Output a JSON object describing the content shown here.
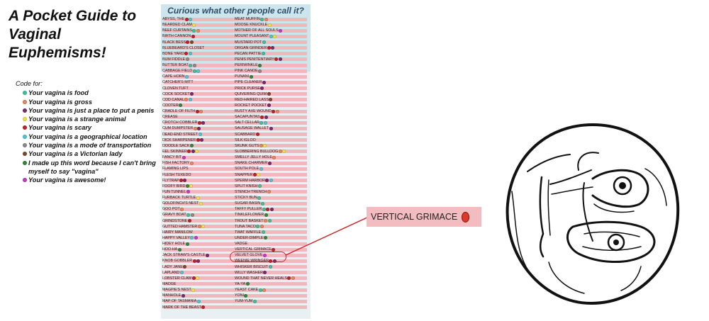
{
  "title_line1": "A Pocket Guide to",
  "title_line2": "Vaginal Euphemisms!",
  "legend": {
    "heading": "Code for:",
    "items": [
      {
        "color": "#3cc0a0",
        "text": "Your vagina is food"
      },
      {
        "color": "#e8865a",
        "text": "Your vagina is gross"
      },
      {
        "color": "#7a2a6e",
        "text": "Your vagina is just a place to put a penis"
      },
      {
        "color": "#f0e04a",
        "text": "Your vagina is a strange animal"
      },
      {
        "color": "#c0202a",
        "text": "Your vagina is scary"
      },
      {
        "color": "#4cc6d4",
        "text": "Your vagina is a geographical location"
      },
      {
        "color": "#8a8a8a",
        "text": "Your vagina is a mode of transportation"
      },
      {
        "color": "#7a4a2a",
        "text": "Your vagina is a Victorian lady"
      },
      {
        "color": "#2a8a3a",
        "text": "I made up this word because I can't bring myself to say \"vagina\""
      },
      {
        "color": "#c43ac8",
        "text": "Your vagina is awesome!"
      }
    ]
  },
  "guide_title": "Curious what other people call it?",
  "left_col": [
    {
      "t": "ABYSS, THE",
      "c": [
        "#c0202a",
        "#4cc6d4"
      ]
    },
    {
      "t": "BEARDED CLAM",
      "c": [
        "#f0e04a"
      ]
    },
    {
      "t": "BEEF CURTAINS",
      "c": [
        "#3cc0a0",
        "#e8865a"
      ]
    },
    {
      "t": "BIRTH CANNON",
      "c": [
        "#c0202a"
      ]
    },
    {
      "t": "BLACK BESS",
      "c": [
        "#c0202a",
        "#7a4a2a"
      ]
    },
    {
      "t": "BLUEBEARD'S CLOSET",
      "c": []
    },
    {
      "t": "BONE YARD",
      "c": [
        "#c0202a",
        "#4cc6d4"
      ]
    },
    {
      "t": "BUM FIDDLE",
      "c": [
        "#8a8a8a"
      ]
    },
    {
      "t": "BUTTER BOAT",
      "c": [
        "#3cc0a0",
        "#8a8a8a"
      ]
    },
    {
      "t": "CABBAGE FIELD",
      "c": [
        "#3cc0a0",
        "#4cc6d4"
      ]
    },
    {
      "t": "CAPE HORN",
      "c": [
        "#4cc6d4"
      ]
    },
    {
      "t": "CATCHER'S MITT",
      "c": []
    },
    {
      "t": "CLOVEN TUFT",
      "c": []
    },
    {
      "t": "COCK SOCKET",
      "c": [
        "#7a2a6e"
      ]
    },
    {
      "t": "COD CANAL",
      "c": [
        "#e8865a",
        "#4cc6d4"
      ]
    },
    {
      "t": "COOTER",
      "c": [
        "#2a8a3a"
      ]
    },
    {
      "t": "CRADLE OF FILTH",
      "c": [
        "#c0202a",
        "#e8865a"
      ]
    },
    {
      "t": "CREASE",
      "c": []
    },
    {
      "t": "CROTCH COBBLER",
      "c": [
        "#c0202a",
        "#7a2a6e"
      ]
    },
    {
      "t": "CUM DUMPSTER",
      "c": [
        "#e8865a",
        "#7a2a6e"
      ]
    },
    {
      "t": "DEAD-END STREET",
      "c": [
        "#4cc6d4"
      ]
    },
    {
      "t": "DICK SHARPENER",
      "c": [
        "#c0202a",
        "#7a2a6e"
      ]
    },
    {
      "t": "DOODLE SACK",
      "c": [
        "#2a8a3a"
      ]
    },
    {
      "t": "EEL SKINNER",
      "c": [
        "#c0202a",
        "#7a2a6e",
        "#f0e04a"
      ]
    },
    {
      "t": "FANCY BIT",
      "c": [
        "#c43ac8"
      ]
    },
    {
      "t": "FISH FACTORY",
      "c": [
        "#e8865a"
      ]
    },
    {
      "t": "FLAMING LIPS",
      "c": []
    },
    {
      "t": "FLESH TUXEDO",
      "c": []
    },
    {
      "t": "FLYTRAP",
      "c": [
        "#c0202a",
        "#7a2a6e"
      ]
    },
    {
      "t": "FOOFY BIRD",
      "c": [
        "#2a8a3a",
        "#f0e04a"
      ]
    },
    {
      "t": "FUN TUNNEL",
      "c": [
        "#c43ac8"
      ]
    },
    {
      "t": "FURBACK TURTLE",
      "c": [
        "#f0e04a"
      ]
    },
    {
      "t": "GOLDFINCH'S NEST",
      "c": [
        "#f0e04a"
      ]
    },
    {
      "t": "GOO POT",
      "c": [
        "#e8865a"
      ]
    },
    {
      "t": "GRAVY BOAT",
      "c": [
        "#3cc0a0",
        "#8a8a8a"
      ]
    },
    {
      "t": "GRINDSTONE",
      "c": [
        "#c0202a"
      ]
    },
    {
      "t": "GUTTED HAMSTER",
      "c": [
        "#e8865a",
        "#f0e04a"
      ]
    },
    {
      "t": "HAIRY MANILOW",
      "c": []
    },
    {
      "t": "HAPPY VALLEY",
      "c": [
        "#4cc6d4",
        "#c43ac8"
      ]
    },
    {
      "t": "HIDEY HOLE",
      "c": [
        "#2a8a3a"
      ]
    },
    {
      "t": "HOO-HA",
      "c": [
        "#2a8a3a"
      ]
    },
    {
      "t": "JACK STRAW'S CASTLE",
      "c": [
        "#7a2a6e"
      ]
    },
    {
      "t": "KNOB GOBBLER",
      "c": [
        "#c0202a",
        "#7a2a6e"
      ]
    },
    {
      "t": "LADY JANE",
      "c": [
        "#7a4a2a"
      ]
    },
    {
      "t": "LAPLAND",
      "c": [
        "#4cc6d4"
      ]
    },
    {
      "t": "LOBSTER CLAW",
      "c": [
        "#c0202a",
        "#f0e04a"
      ]
    },
    {
      "t": "MADGE",
      "c": []
    },
    {
      "t": "MAGPIE'S NEST",
      "c": [
        "#f0e04a"
      ]
    },
    {
      "t": "MANHOLE",
      "c": [
        "#7a2a6e"
      ]
    },
    {
      "t": "MAP OF TASMANIA",
      "c": [
        "#4cc6d4"
      ]
    },
    {
      "t": "MARK OF THE BEAST",
      "c": [
        "#c0202a"
      ]
    }
  ],
  "right_col": [
    {
      "t": "MEAT MUFFIN",
      "c": [
        "#3cc0a0",
        "#e8865a"
      ]
    },
    {
      "t": "MOOSE KNUCKLE",
      "c": [
        "#f0e04a"
      ]
    },
    {
      "t": "MOTHER OF ALL SOULS",
      "c": [
        "#c43ac8"
      ]
    },
    {
      "t": "MOUNT PLEASANT",
      "c": [
        "#4cc6d4",
        "#f0e04a"
      ]
    },
    {
      "t": "MUSTARD POT",
      "c": [
        "#3cc0a0"
      ]
    },
    {
      "t": "ORGAN GRINDER",
      "c": [
        "#c0202a",
        "#7a2a6e"
      ]
    },
    {
      "t": "PECAN PATTIE",
      "c": [
        "#3cc0a0"
      ]
    },
    {
      "t": "PENIS PENITENTIARY",
      "c": [
        "#c0202a",
        "#7a2a6e"
      ]
    },
    {
      "t": "PERIWINKLE",
      "c": [
        "#2a8a3a"
      ]
    },
    {
      "t": "PINK CANOE",
      "c": [
        "#8a8a8a"
      ]
    },
    {
      "t": "PUNANI",
      "c": [
        "#2a8a3a"
      ]
    },
    {
      "t": "PIPE CLEANER",
      "c": [
        "#7a2a6e"
      ]
    },
    {
      "t": "PRICK PURSE",
      "c": [
        "#7a2a6e"
      ]
    },
    {
      "t": "QUIVERING QUIM",
      "c": [
        "#7a4a2a"
      ]
    },
    {
      "t": "RED-HAIRED LASS",
      "c": [
        "#7a4a2a"
      ]
    },
    {
      "t": "ROCKET POCKET",
      "c": [
        "#7a2a6e"
      ]
    },
    {
      "t": "RUSTY AXE WOUND",
      "c": [
        "#c0202a",
        "#e8865a"
      ]
    },
    {
      "t": "SACAPUNTAS",
      "c": [
        "#c0202a",
        "#7a2a6e"
      ]
    },
    {
      "t": "SALT CELLAR",
      "c": [
        "#3cc0a0",
        "#4cc6d4"
      ]
    },
    {
      "t": "SAUSAGE WALLET",
      "c": [
        "#7a2a6e"
      ]
    },
    {
      "t": "SCABBARD",
      "c": [
        "#c0202a"
      ]
    },
    {
      "t": "SILK IGLOO",
      "c": []
    },
    {
      "t": "SKUNK GUTS",
      "c": [
        "#e8865a",
        "#f0e04a"
      ]
    },
    {
      "t": "SLOBBERING BULLDOG",
      "c": [
        "#e8865a",
        "#f0e04a"
      ]
    },
    {
      "t": "SMELLY JELLY HOLE",
      "c": [
        "#e8865a"
      ]
    },
    {
      "t": "SNAKE CHARMER",
      "c": [
        "#7a2a6e"
      ]
    },
    {
      "t": "SOUTH POLE",
      "c": [
        "#4cc6d4"
      ]
    },
    {
      "t": "SNAPPER",
      "c": [
        "#c0202a",
        "#f0e04a"
      ]
    },
    {
      "t": "SPERM HARBOR",
      "c": [
        "#7a2a6e",
        "#4cc6d4"
      ]
    },
    {
      "t": "SPLIT KNISH",
      "c": [
        "#3cc0a0"
      ]
    },
    {
      "t": "STENCH TRENCH",
      "c": [
        "#e8865a"
      ]
    },
    {
      "t": "STICKY BUN",
      "c": [
        "#3cc0a0"
      ]
    },
    {
      "t": "SUGAR BASIN",
      "c": [
        "#3cc0a0"
      ]
    },
    {
      "t": "TAFFY PULLER",
      "c": [
        "#3cc0a0",
        "#c0202a",
        "#7a2a6e"
      ]
    },
    {
      "t": "TINKLEFLOWER",
      "c": [
        "#2a8a3a"
      ]
    },
    {
      "t": "TROUT BASKET",
      "c": [
        "#e8865a",
        "#3cc0a0"
      ]
    },
    {
      "t": "TUNA TACO",
      "c": [
        "#3cc0a0",
        "#e8865a"
      ]
    },
    {
      "t": "TWAT WAFFLE",
      "c": [
        "#3cc0a0"
      ]
    },
    {
      "t": "UNDER-DIMPLE",
      "c": [
        "#2a8a3a"
      ]
    },
    {
      "t": "VADGE",
      "c": []
    },
    {
      "t": "VERTICAL GRIMACE",
      "c": [
        "#c0202a"
      ]
    },
    {
      "t": "VELVET GLOVE",
      "c": [
        "#c43ac8"
      ]
    },
    {
      "t": "WEENIE WRINGER",
      "c": [
        "#c0202a",
        "#7a2a6e"
      ]
    },
    {
      "t": "WHISKER BISCUIT",
      "c": [
        "#3cc0a0"
      ]
    },
    {
      "t": "WILLY WASHER",
      "c": [
        "#7a2a6e"
      ]
    },
    {
      "t": "WOUND THAT NEVER HEALS",
      "c": [
        "#c0202a",
        "#e8865a"
      ]
    },
    {
      "t": "YA-YA",
      "c": [
        "#2a8a3a"
      ]
    },
    {
      "t": "YEAST CAKE",
      "c": [
        "#3cc0a0",
        "#e8865a"
      ]
    },
    {
      "t": "YONI",
      "c": [
        "#2a8a3a"
      ]
    },
    {
      "t": "YUM-YUM",
      "c": [
        "#3cc0a0"
      ]
    }
  ],
  "callout_text": "VERTICAL GRIMACE",
  "callout_color": "#d93a2b"
}
